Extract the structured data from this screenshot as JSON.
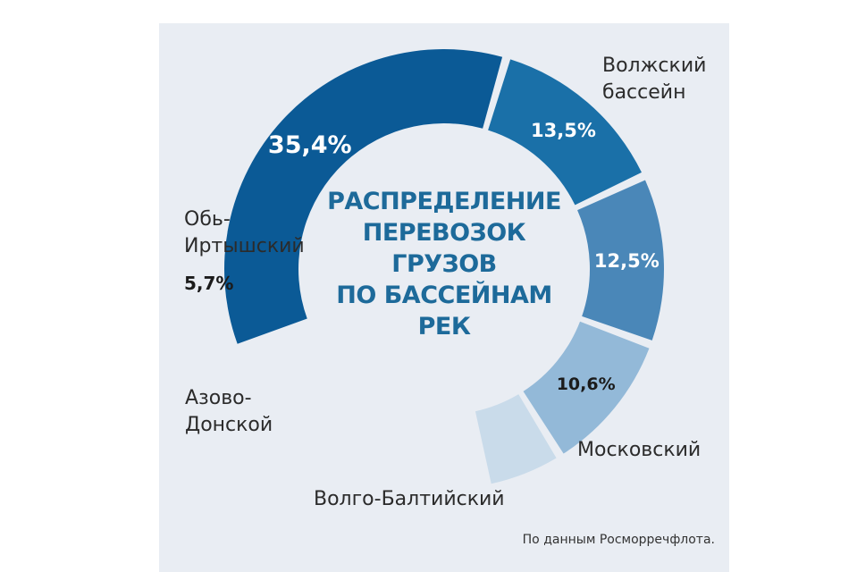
{
  "chart_data": {
    "type": "pie",
    "donut": true,
    "title_lines": [
      "РАСПРЕДЕЛЕНИЕ",
      "ПЕРЕВОЗОК",
      "ГРУЗОВ",
      "ПО БАССЕЙНАМ",
      "РЕК"
    ],
    "slices": [
      {
        "label_lines": [
          "Волжский",
          "бассейн"
        ],
        "value": 35.4,
        "value_text": "35,4%",
        "color": "#0b5a96"
      },
      {
        "label_lines": [
          "Московский"
        ],
        "value": 13.5,
        "value_text": "13,5%",
        "color": "#1a70a8"
      },
      {
        "label_lines": [
          "Волго-Балтийский"
        ],
        "value": 12.5,
        "value_text": "12,5%",
        "color": "#4a87b8"
      },
      {
        "label_lines": [
          "Азово-",
          "Донской"
        ],
        "value": 10.6,
        "value_text": "10,6%",
        "color": "#93b9d8"
      },
      {
        "label_lines": [
          "Обь-",
          "Иртышский"
        ],
        "value": 5.7,
        "value_text": "5,7%",
        "color": "#c9dbea"
      }
    ]
  },
  "source": "По данным Росморречфлота."
}
